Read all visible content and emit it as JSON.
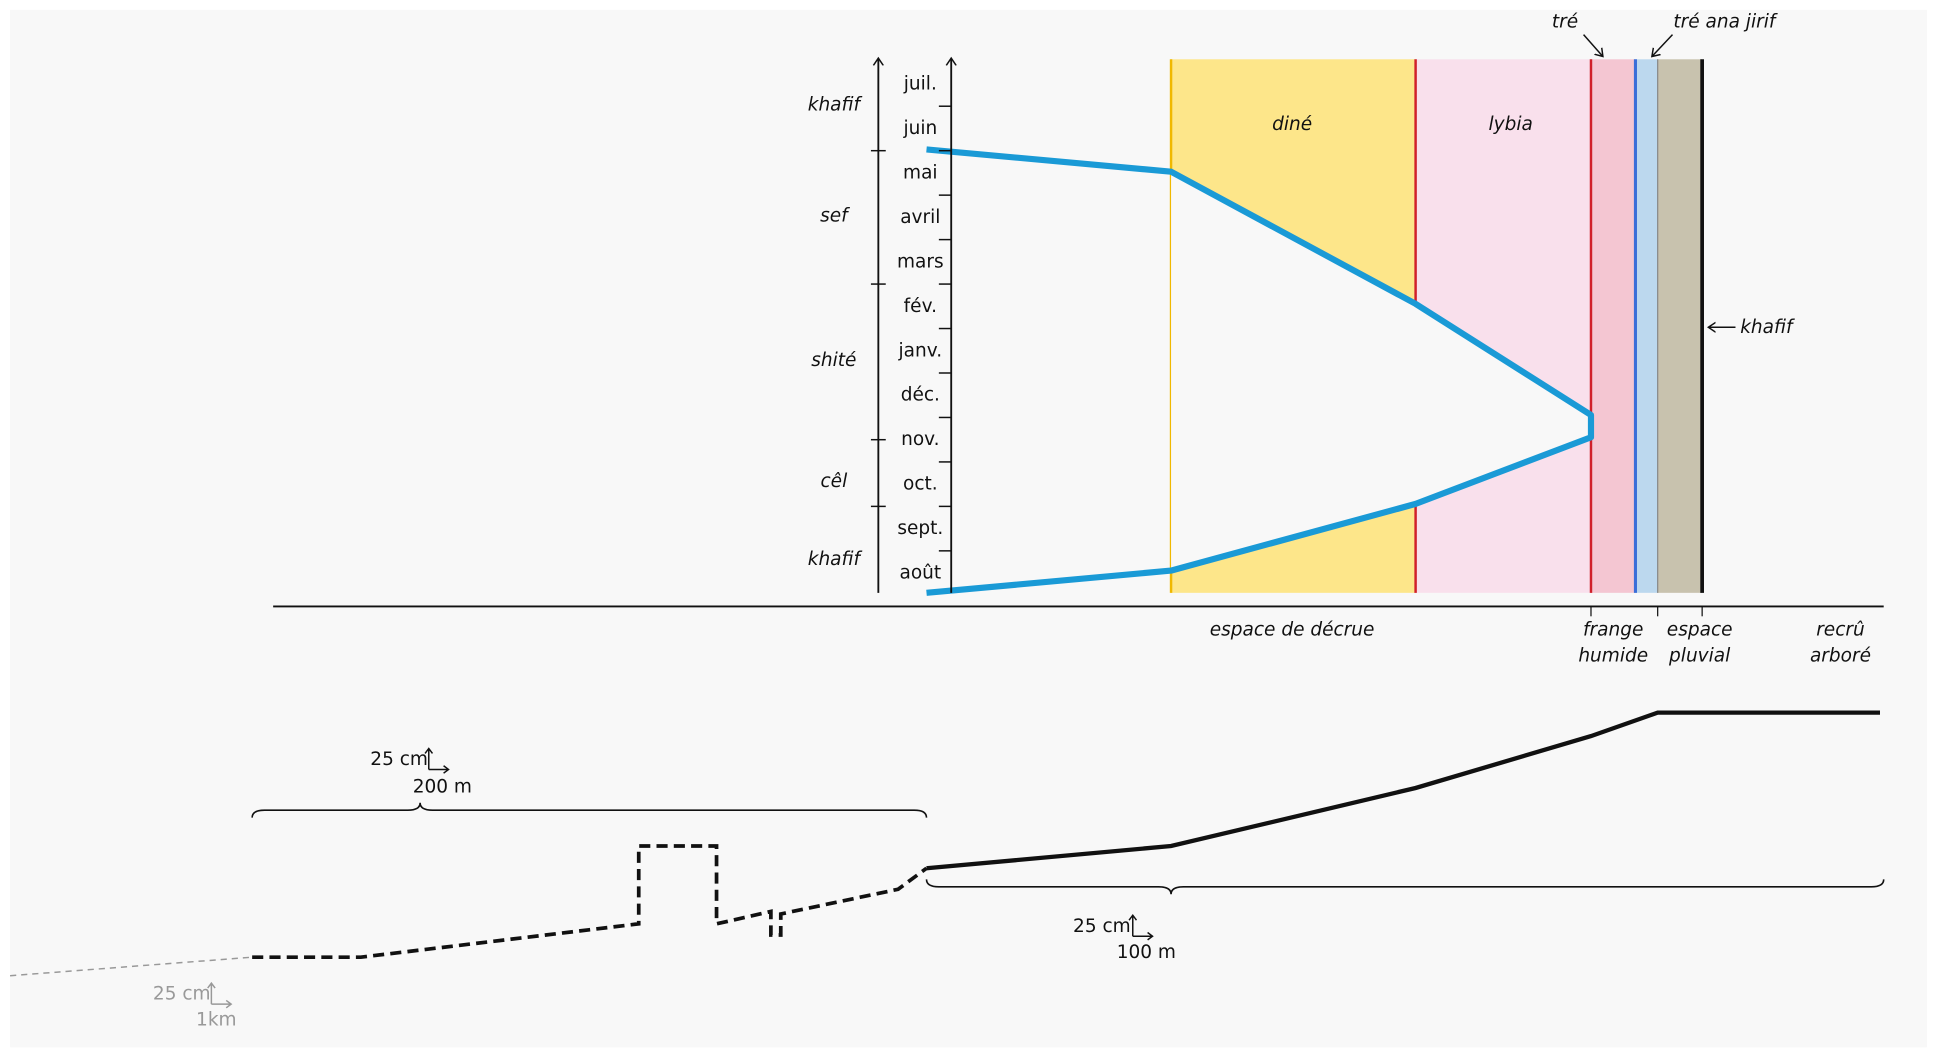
{
  "months": [
    "juil.",
    "juin",
    "mai",
    "avril",
    "mars",
    "fév.",
    "janv.",
    "déc.",
    "nov.",
    "oct.",
    "sept.",
    "août"
  ],
  "seasons": [
    "khafif",
    "sef",
    "shité",
    "cêl",
    "khafif"
  ],
  "zones": [
    "diné",
    "lybia"
  ],
  "top_labels": [
    "tré",
    "tré ana jirif"
  ],
  "side_label": "khafif",
  "bottom_labels": [
    [
      "espace de décrue"
    ],
    [
      "frange",
      "humide"
    ],
    [
      "espace",
      "pluvial"
    ],
    [
      "recrû",
      "arboré"
    ]
  ],
  "scales": [
    [
      "25 cm",
      "200 m"
    ],
    [
      "25 cm",
      "100 m"
    ],
    [
      "25 cm",
      "1km"
    ]
  ]
}
